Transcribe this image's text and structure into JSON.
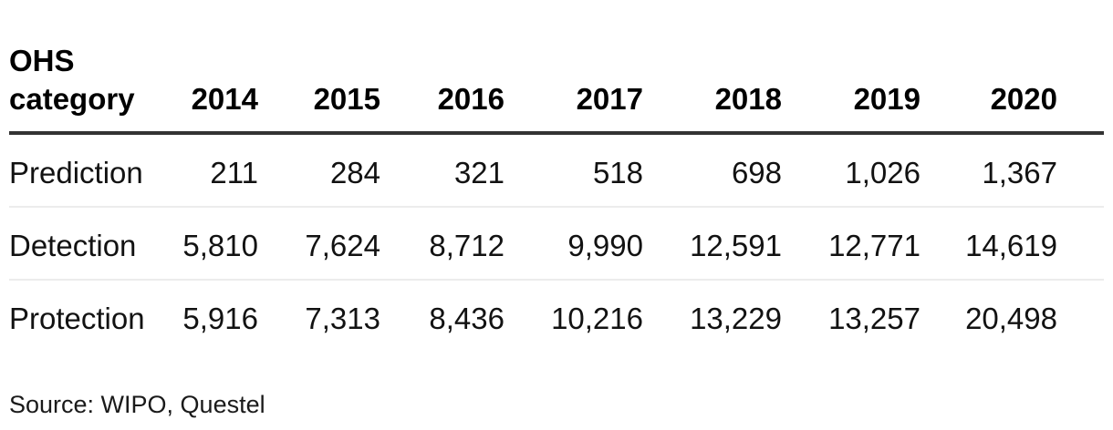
{
  "table": {
    "header": {
      "category_label": "OHS category",
      "years": [
        "2014",
        "2015",
        "2016",
        "2017",
        "2018",
        "2019",
        "2020"
      ]
    },
    "rows": [
      {
        "label": "Prediction",
        "values": [
          "211",
          "284",
          "321",
          "518",
          "698",
          "1,026",
          "1,367"
        ]
      },
      {
        "label": "Detection",
        "values": [
          "5,810",
          "7,624",
          "8,712",
          "9,990",
          "12,591",
          "12,771",
          "14,619"
        ]
      },
      {
        "label": "Protection",
        "values": [
          "5,916",
          "7,313",
          "8,436",
          "10,216",
          "13,229",
          "13,257",
          "20,498"
        ]
      }
    ]
  },
  "source_note": "Source: WIPO, Questel",
  "colors": {
    "header_rule": "#333333",
    "row_rule": "#ececec",
    "text": "#121212",
    "header_text": "#000000",
    "background": "#ffffff"
  },
  "chart_data": {
    "type": "table",
    "title": "",
    "columns": [
      "OHS category",
      "2014",
      "2015",
      "2016",
      "2017",
      "2018",
      "2019",
      "2020"
    ],
    "rows": [
      [
        "Prediction",
        211,
        284,
        321,
        518,
        698,
        1026,
        1367
      ],
      [
        "Detection",
        5810,
        7624,
        8712,
        9990,
        12591,
        12771,
        14619
      ],
      [
        "Protection",
        5916,
        7313,
        8436,
        10216,
        13229,
        13257,
        20498
      ]
    ],
    "source": "Source: WIPO, Questel",
    "layout": {
      "category_column_align": "left",
      "year_columns_align": "right",
      "header_rule": "thick-dark",
      "row_rules": "thin-light-gray",
      "grid": "horizontal-only"
    }
  }
}
